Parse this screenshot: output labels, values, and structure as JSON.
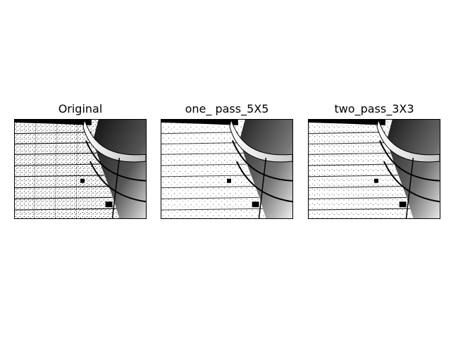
{
  "figure": {
    "panels": [
      {
        "title": "Original",
        "variant": "original"
      },
      {
        "title": "one_ pass_5X5",
        "variant": "one_pass"
      },
      {
        "title": "two_pass_3X3",
        "variant": "two_pass"
      }
    ]
  },
  "colors": {
    "background": "#ffffff",
    "ink": "#000000"
  }
}
